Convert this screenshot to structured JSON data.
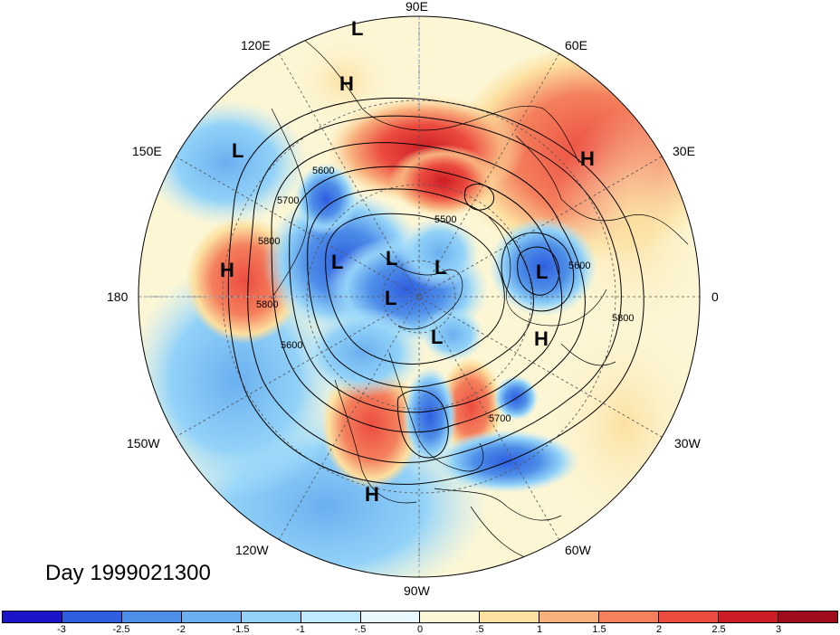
{
  "title": "Day 1999021300",
  "longitude_labels": {
    "top": "90E",
    "upper_left": "120E",
    "upper_right": "60E",
    "left_upper": "150E",
    "right_upper": "30E",
    "left": "180",
    "right": "0",
    "left_lower": "150W",
    "right_lower": "30W",
    "lower_left": "120W",
    "lower_right": "60W",
    "bottom": "90W"
  },
  "pressure_centers": [
    {
      "type": "L",
      "name": "L-top"
    },
    {
      "type": "H",
      "name": "H-upper"
    },
    {
      "type": "L",
      "name": "L-northwest-pacific"
    },
    {
      "type": "H",
      "name": "H-right"
    },
    {
      "type": "H",
      "name": "H-left"
    },
    {
      "type": "L",
      "name": "L-center-1"
    },
    {
      "type": "L",
      "name": "L-center-2"
    },
    {
      "type": "L",
      "name": "L-center-3"
    },
    {
      "type": "L",
      "name": "L-center-4"
    },
    {
      "type": "L",
      "name": "L-europe"
    },
    {
      "type": "H",
      "name": "H-atlantic"
    },
    {
      "type": "L",
      "name": "L-canada"
    },
    {
      "type": "H",
      "name": "H-gulf"
    }
  ],
  "contour_labels": {
    "c1": "5600",
    "c2": "5700",
    "c3": "5500",
    "c4": "5800",
    "c5": "5800",
    "c6": "5600",
    "c7": "5600",
    "c8": "5800",
    "c9": "5700"
  },
  "colorbar": {
    "colors": [
      "#1c14c8",
      "#2f5ee0",
      "#4d8ee8",
      "#6ab0f0",
      "#92d2f8",
      "#bfeafc",
      "#e8f8fc",
      "#fcf6d4",
      "#fce0a0",
      "#f8b07c",
      "#f4805c",
      "#ec4c40",
      "#cc1c24",
      "#a00c1c"
    ],
    "tick_labels": [
      "-3",
      "-2.5",
      "-2",
      "-1.5",
      "-1",
      "-.5",
      "0",
      ".5",
      "1",
      "1.5",
      "2",
      "2.5",
      "3"
    ]
  }
}
